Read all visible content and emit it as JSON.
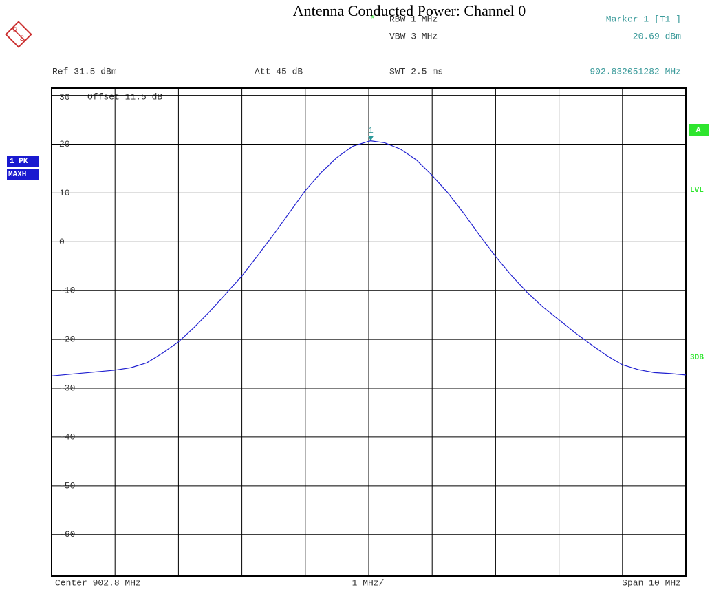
{
  "chart_data": {
    "type": "line",
    "title": "Antenna Conducted Power: Channel 0",
    "logo": [
      "R",
      "S"
    ],
    "settings": {
      "star": "*",
      "rbw": "RBW  1 MHz",
      "vbw": "VBW  3 MHz",
      "swt": "SWT  2.5 ms",
      "ref": "Ref   31.5 dBm",
      "att": "Att   45 dB",
      "offset": "Offset   11.5 dB"
    },
    "marker": {
      "name": "Marker 1 [T1 ]",
      "label": "1",
      "x": 902.832051282,
      "y": 20.69,
      "y_label": "20.69 dBm",
      "x_label": "902.832051282 MHz"
    },
    "trace_labels": [
      "1 PK",
      "MAXH"
    ],
    "side_labels": {
      "a": "A",
      "lvl": "LVL",
      "db3": "3DB"
    },
    "footer": {
      "center": "Center  902.8 MHz",
      "div": "1 MHz/",
      "span": "Span  10 MHz"
    },
    "xlim": [
      897.8,
      907.8
    ],
    "xticks": [
      897.8,
      898.8,
      899.8,
      900.8,
      901.8,
      902.8,
      903.8,
      904.8,
      905.8,
      906.8,
      907.8
    ],
    "ylim": [
      -68.5,
      31.5
    ],
    "yticks": [
      30,
      20,
      10,
      0,
      -10,
      -20,
      -30,
      -40,
      -50,
      -60
    ],
    "grid": true,
    "series": [
      {
        "color": "#2020d0",
        "x": [
          897.8,
          898.05,
          898.3,
          898.55,
          898.8,
          899.05,
          899.3,
          899.55,
          899.8,
          900.05,
          900.3,
          900.55,
          900.8,
          901.05,
          901.3,
          901.55,
          901.8,
          902.05,
          902.3,
          902.55,
          902.8,
          902.83,
          903.05,
          903.3,
          903.55,
          903.8,
          904.05,
          904.3,
          904.55,
          904.8,
          905.05,
          905.3,
          905.55,
          905.8,
          906.05,
          906.3,
          906.55,
          906.8,
          907.05,
          907.3,
          907.55,
          907.8
        ],
        "values": [
          -27.5,
          -27.2,
          -26.9,
          -26.6,
          -26.3,
          -25.8,
          -24.8,
          -22.8,
          -20.5,
          -17.5,
          -14.2,
          -10.6,
          -7.0,
          -2.8,
          1.5,
          6.0,
          10.5,
          14.2,
          17.3,
          19.6,
          20.6,
          20.69,
          20.3,
          19.0,
          16.8,
          13.6,
          10.0,
          5.8,
          1.3,
          -3.0,
          -6.9,
          -10.4,
          -13.4,
          -16.0,
          -18.6,
          -21.0,
          -23.3,
          -25.2,
          -26.2,
          -26.8,
          -27.0,
          -27.3
        ]
      }
    ]
  }
}
